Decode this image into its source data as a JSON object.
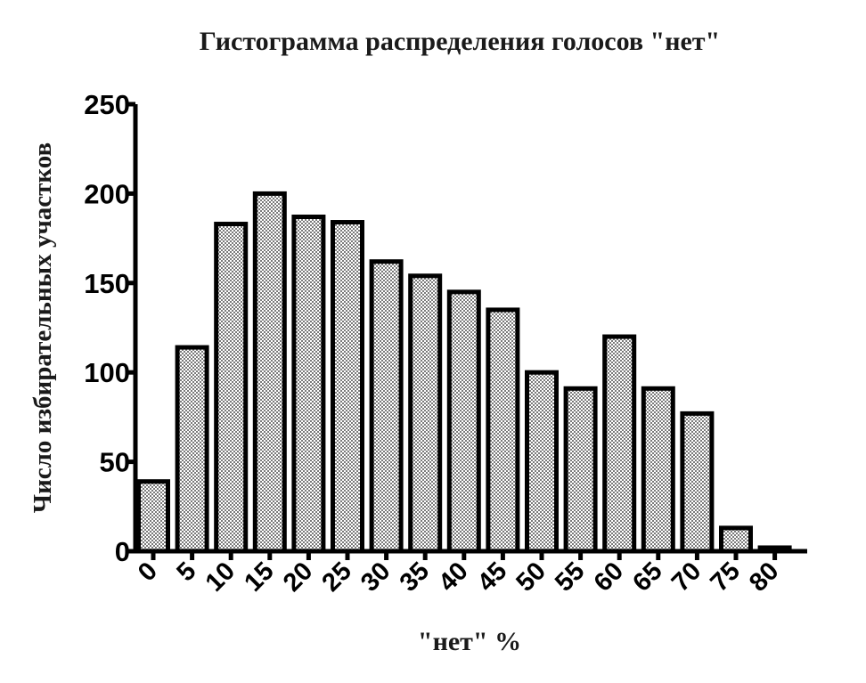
{
  "chart_data": {
    "type": "bar",
    "title": "Гистограмма распределения голосов \"нет\"",
    "xlabel": "\"нет\" %",
    "ylabel": "Число избирательных участков",
    "categories": [
      "0",
      "5",
      "10",
      "15",
      "20",
      "25",
      "30",
      "35",
      "40",
      "45",
      "50",
      "55",
      "60",
      "65",
      "70",
      "75",
      "80"
    ],
    "values": [
      39,
      114,
      183,
      200,
      187,
      184,
      162,
      154,
      145,
      135,
      100,
      91,
      120,
      91,
      77,
      13,
      2
    ],
    "ylim": [
      0,
      250
    ],
    "yticks": [
      "0",
      "50",
      "100",
      "150",
      "200",
      "250"
    ],
    "grid": false,
    "legend": "none",
    "colors": {
      "bar_fill_pattern": "#b5b5b5",
      "bar_stroke": "#000000",
      "axis": "#000000"
    }
  }
}
